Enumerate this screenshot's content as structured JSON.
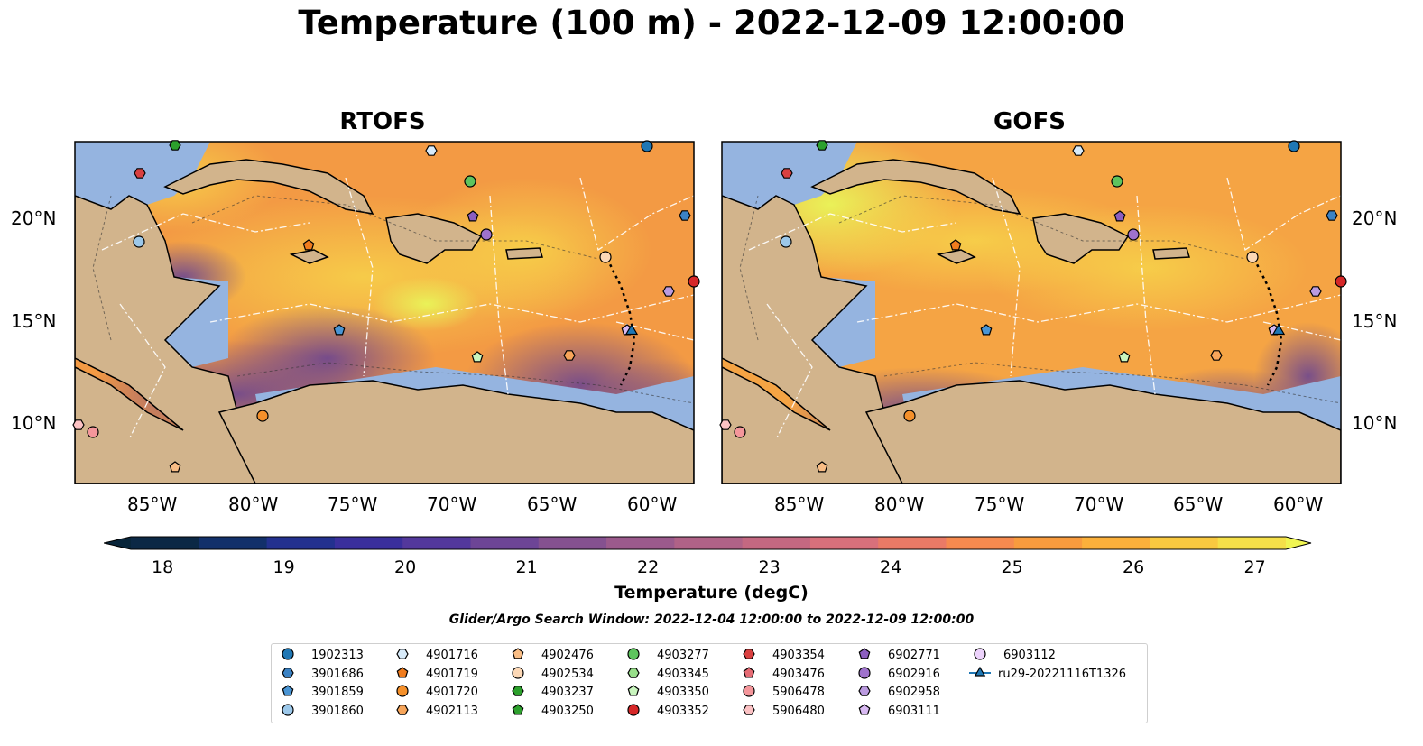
{
  "title": "Temperature (100 m) - 2022-12-09 12:00:00",
  "panels": [
    {
      "id": "rtofs",
      "title": "RTOFS"
    },
    {
      "id": "gofs",
      "title": "GOFS"
    }
  ],
  "lat_labels": [
    "20°N",
    "15°N",
    "10°N"
  ],
  "lon_labels": [
    "85°W",
    "80°W",
    "75°W",
    "70°W",
    "65°W",
    "60°W"
  ],
  "colorbar": {
    "label": "Temperature (degC)",
    "ticks": [
      "18",
      "19",
      "20",
      "21",
      "22",
      "23",
      "24",
      "25",
      "26",
      "27"
    ],
    "colors": [
      "#0b2845",
      "#12306a",
      "#23318f",
      "#3a2f9c",
      "#53389c",
      "#6d4596",
      "#855190",
      "#9b5a8c",
      "#b06287",
      "#c46881",
      "#d8707b",
      "#ea7a66",
      "#f68a4f",
      "#f89b3e",
      "#fbb03b",
      "#f9c940",
      "#f5e049"
    ]
  },
  "search_window": "Glider/Argo Search Window: 2022-12-04 12:00:00 to 2022-12-09 12:00:00",
  "legend": [
    {
      "label": "1902313",
      "marker": "circle",
      "color": "#1f77b4"
    },
    {
      "label": "3901686",
      "marker": "hexagon",
      "color": "#3b82c4"
    },
    {
      "label": "3901859",
      "marker": "pentagon",
      "color": "#4a95d4"
    },
    {
      "label": "3901860",
      "marker": "circle",
      "color": "#9cc8ea"
    },
    {
      "label": "4901716",
      "marker": "hexagon",
      "color": "#d8ebfa"
    },
    {
      "label": "4901719",
      "marker": "pentagon",
      "color": "#f07c1e"
    },
    {
      "label": "4901720",
      "marker": "circle",
      "color": "#f5902a"
    },
    {
      "label": "4902113",
      "marker": "hexagon",
      "color": "#f7a55a"
    },
    {
      "label": "4902476",
      "marker": "pentagon",
      "color": "#f9bd85"
    },
    {
      "label": "4902534",
      "marker": "circle",
      "color": "#fcd8b6"
    },
    {
      "label": "4903237",
      "marker": "hexagon",
      "color": "#2ca02c"
    },
    {
      "label": "4903250",
      "marker": "pentagon",
      "color": "#2ea12e"
    },
    {
      "label": "4903277",
      "marker": "circle",
      "color": "#5ec45e"
    },
    {
      "label": "4903345",
      "marker": "hexagon",
      "color": "#98df8a"
    },
    {
      "label": "4903350",
      "marker": "pentagon",
      "color": "#c9f5be"
    },
    {
      "label": "4903352",
      "marker": "circle",
      "color": "#d62728"
    },
    {
      "label": "4903354",
      "marker": "hexagon",
      "color": "#d94040"
    },
    {
      "label": "4903476",
      "marker": "pentagon",
      "color": "#e66b74"
    },
    {
      "label": "5906478",
      "marker": "circle",
      "color": "#f4969b"
    },
    {
      "label": "5906480",
      "marker": "hexagon",
      "color": "#fcc2c4"
    },
    {
      "label": "6902771",
      "marker": "pentagon",
      "color": "#8c5ec0"
    },
    {
      "label": "6902916",
      "marker": "circle",
      "color": "#9f72cd"
    },
    {
      "label": "6902958",
      "marker": "hexagon",
      "color": "#bb9be0"
    },
    {
      "label": "6903111",
      "marker": "pentagon",
      "color": "#d8b9f2"
    },
    {
      "label": "6903112",
      "marker": "circle",
      "color": "#ecd2fb"
    },
    {
      "label": "ru29-20221116T1326",
      "marker": "triangle-line",
      "color": "#1f77b4"
    }
  ],
  "land_color": "#d2b48c",
  "shelf_color": "#95b4e0",
  "deep_color": "#08253a"
}
